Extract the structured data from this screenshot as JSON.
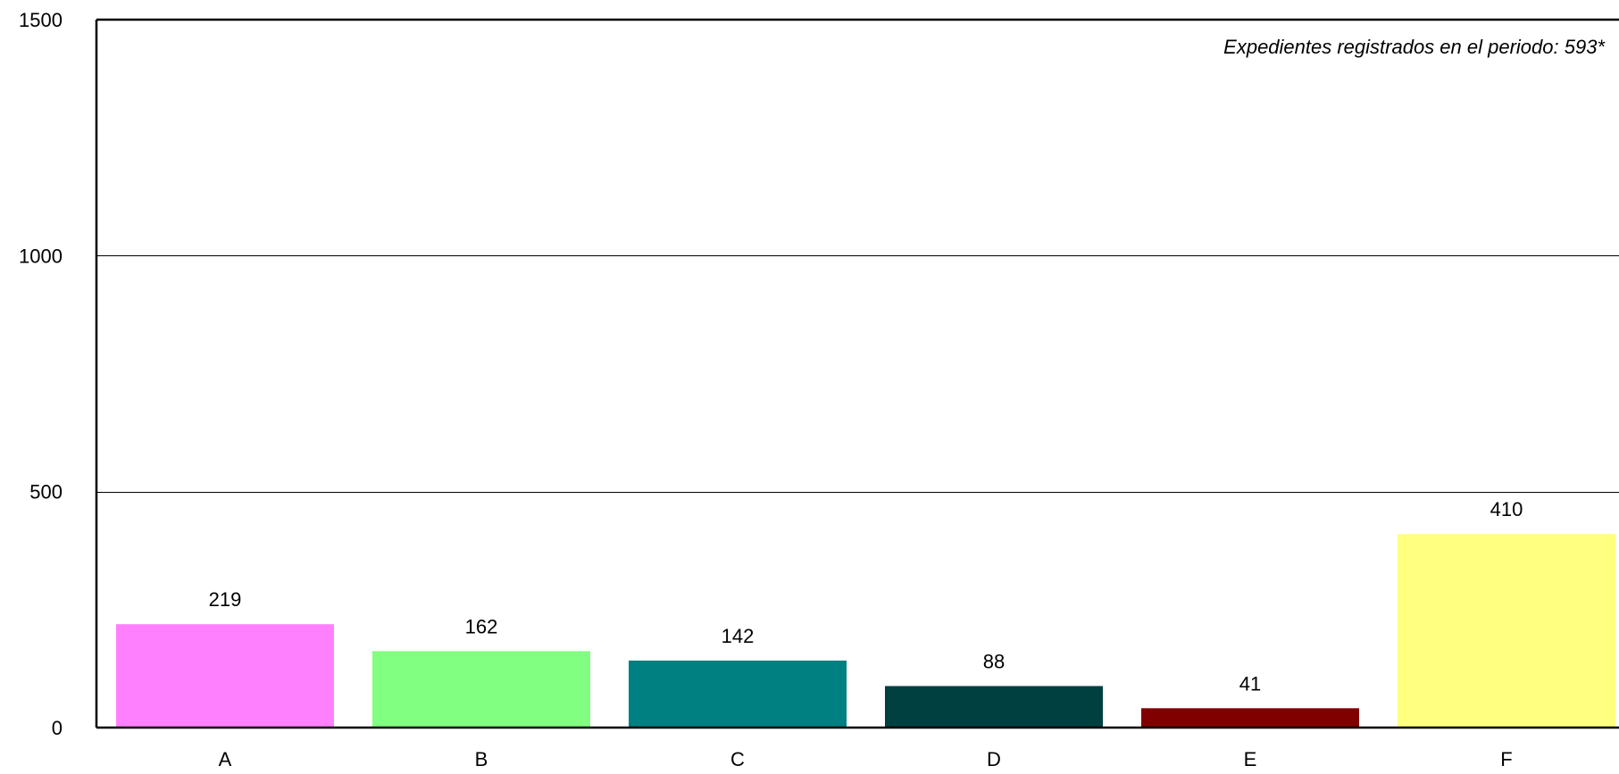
{
  "chart_data": {
    "type": "bar",
    "categories": [
      "A",
      "B",
      "C",
      "D",
      "E",
      "F"
    ],
    "values": [
      219,
      162,
      142,
      88,
      41,
      410
    ],
    "value_labels": [
      "219",
      "162",
      "142",
      "88",
      "41",
      "410"
    ],
    "colors": [
      "#ff80ff",
      "#80ff80",
      "#008080",
      "#004040",
      "#800000",
      "#ffff80"
    ],
    "yticks": [
      0,
      500,
      1000,
      1500
    ],
    "ytick_labels": [
      "0",
      "500",
      "1000",
      "1500"
    ],
    "ylim": [
      0,
      1500
    ],
    "grid": true,
    "annotation": "Expedientes registrados en el periodo:  593*",
    "title": "",
    "xlabel": "",
    "ylabel": ""
  }
}
